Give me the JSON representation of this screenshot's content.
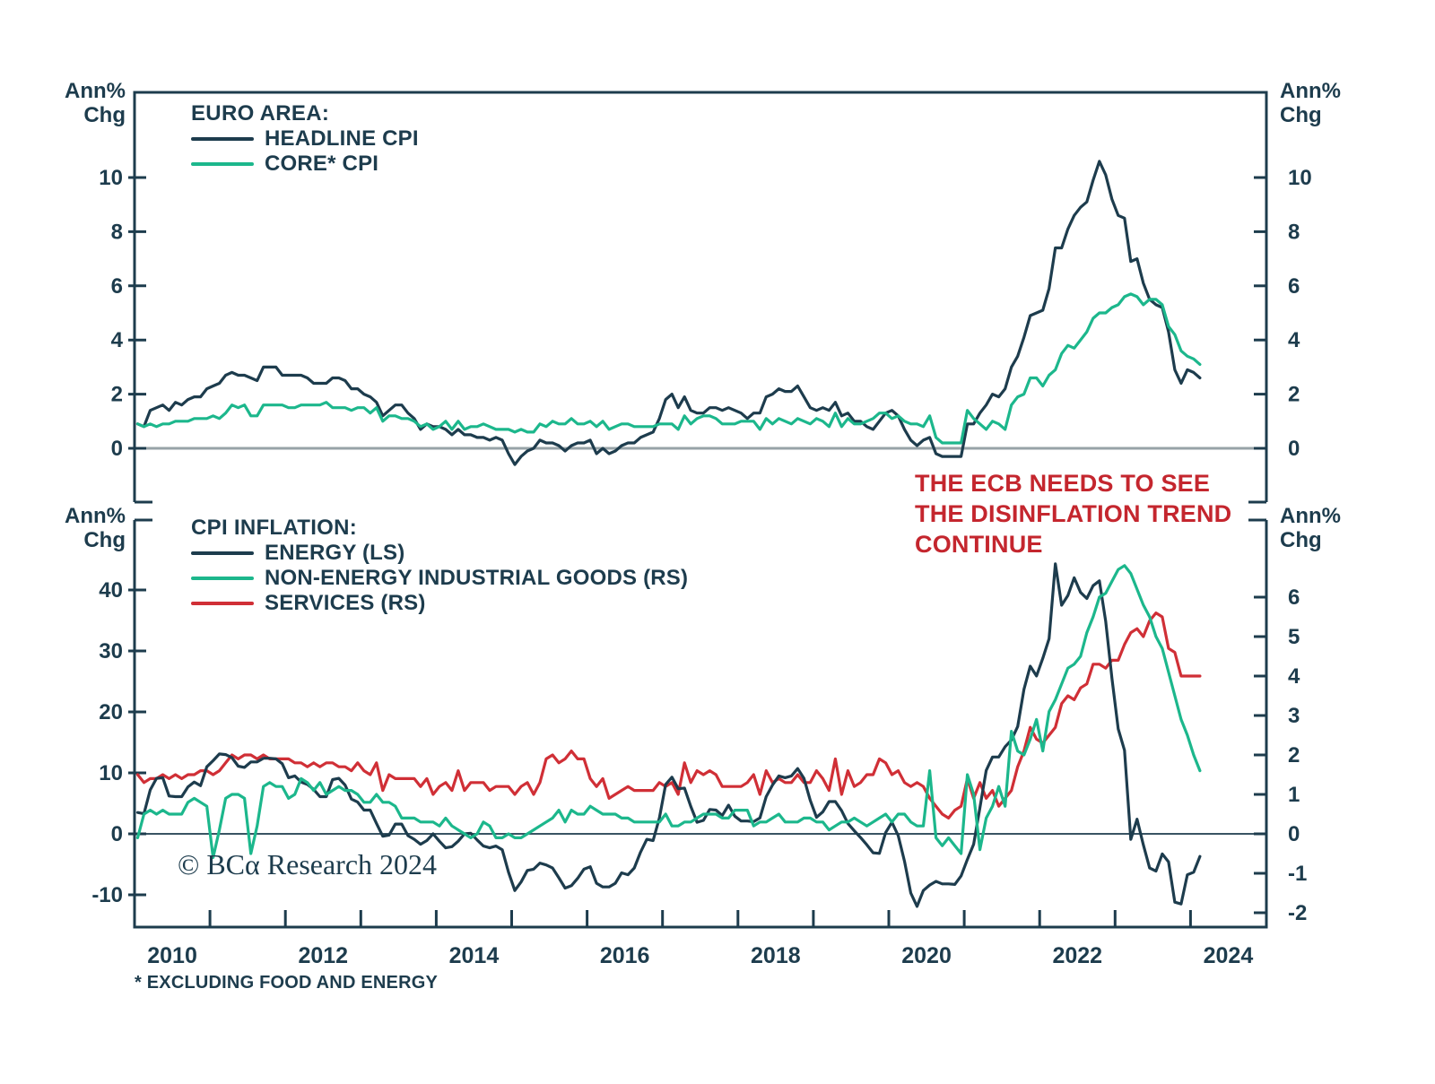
{
  "colors": {
    "navy": "#1d3c4d",
    "green": "#1cb78c",
    "red": "#d02f36",
    "annotation_red": "#c4262e",
    "zero_gray": "#97a3a7"
  },
  "axis_headers": {
    "line1": "Ann%",
    "line2": "Chg"
  },
  "annotation": {
    "line1": "THE ECB NEEDS TO SEE",
    "line2": "THE DISINFLATION TREND",
    "line3": "CONTINUE"
  },
  "footnote": "* EXCLUDING FOOD AND ENERGY",
  "copyright": "© BCα Research 2024",
  "chart_data": [
    {
      "type": "line",
      "title": "EURO AREA:",
      "x_start_year": 2010,
      "points_per_year": 12,
      "x_range": [
        2010,
        2025
      ],
      "ylim": [
        -2,
        13
      ],
      "ylabel_left": "Ann% Chg",
      "ylabel_right": "Ann% Chg",
      "y_ticks_left": [
        10,
        8,
        6,
        4,
        2,
        0
      ],
      "y_ticks_right": [
        10,
        8,
        6,
        4,
        2,
        0
      ],
      "grid": false,
      "zero_line": true,
      "series": [
        {
          "name": "HEADLINE CPI",
          "color_key": "navy",
          "axis": "left",
          "values": [
            0.9,
            0.8,
            1.4,
            1.5,
            1.6,
            1.4,
            1.7,
            1.6,
            1.8,
            1.9,
            1.9,
            2.2,
            2.3,
            2.4,
            2.7,
            2.8,
            2.7,
            2.7,
            2.6,
            2.5,
            3.0,
            3.0,
            3.0,
            2.7,
            2.7,
            2.7,
            2.7,
            2.6,
            2.4,
            2.4,
            2.4,
            2.6,
            2.6,
            2.5,
            2.2,
            2.2,
            2.0,
            1.9,
            1.7,
            1.2,
            1.4,
            1.6,
            1.6,
            1.3,
            1.1,
            0.7,
            0.9,
            0.8,
            0.8,
            0.7,
            0.5,
            0.7,
            0.5,
            0.5,
            0.4,
            0.4,
            0.3,
            0.4,
            0.3,
            -0.2,
            -0.6,
            -0.3,
            -0.1,
            0.0,
            0.3,
            0.2,
            0.2,
            0.1,
            -0.1,
            0.1,
            0.2,
            0.2,
            0.3,
            -0.2,
            0.0,
            -0.2,
            -0.1,
            0.1,
            0.2,
            0.2,
            0.4,
            0.5,
            0.6,
            1.1,
            1.8,
            2.0,
            1.5,
            1.9,
            1.4,
            1.3,
            1.3,
            1.5,
            1.5,
            1.4,
            1.5,
            1.4,
            1.3,
            1.1,
            1.3,
            1.3,
            1.9,
            2.0,
            2.2,
            2.1,
            2.1,
            2.3,
            1.9,
            1.5,
            1.4,
            1.5,
            1.4,
            1.7,
            1.2,
            1.3,
            1.0,
            1.0,
            0.8,
            0.7,
            1.0,
            1.3,
            1.4,
            1.2,
            0.7,
            0.3,
            0.1,
            0.3,
            0.4,
            -0.2,
            -0.3,
            -0.3,
            -0.3,
            -0.3,
            0.9,
            0.9,
            1.3,
            1.6,
            2.0,
            1.9,
            2.2,
            3.0,
            3.4,
            4.1,
            4.9,
            5.0,
            5.1,
            5.9,
            7.4,
            7.4,
            8.1,
            8.6,
            8.9,
            9.1,
            9.9,
            10.6,
            10.1,
            9.2,
            8.6,
            8.5,
            6.9,
            7.0,
            6.1,
            5.5,
            5.3,
            5.2,
            4.3,
            2.9,
            2.4,
            2.9,
            2.8,
            2.6
          ]
        },
        {
          "name": "CORE* CPI",
          "color_key": "green",
          "axis": "left",
          "values": [
            0.9,
            0.8,
            0.9,
            0.8,
            0.9,
            0.9,
            1.0,
            1.0,
            1.0,
            1.1,
            1.1,
            1.1,
            1.2,
            1.1,
            1.3,
            1.6,
            1.5,
            1.6,
            1.2,
            1.2,
            1.6,
            1.6,
            1.6,
            1.6,
            1.5,
            1.5,
            1.6,
            1.6,
            1.6,
            1.6,
            1.7,
            1.5,
            1.5,
            1.5,
            1.4,
            1.5,
            1.5,
            1.3,
            1.5,
            1.0,
            1.2,
            1.2,
            1.1,
            1.1,
            1.0,
            0.8,
            0.9,
            0.7,
            0.8,
            1.0,
            0.7,
            1.0,
            0.7,
            0.8,
            0.8,
            0.9,
            0.8,
            0.7,
            0.7,
            0.7,
            0.6,
            0.7,
            0.6,
            0.6,
            0.9,
            0.8,
            1.0,
            0.9,
            0.9,
            1.1,
            0.9,
            0.9,
            1.0,
            0.8,
            1.0,
            0.7,
            0.8,
            0.9,
            0.9,
            0.8,
            0.8,
            0.8,
            0.8,
            0.9,
            0.9,
            0.9,
            0.7,
            1.2,
            0.9,
            1.1,
            1.2,
            1.2,
            1.1,
            0.9,
            0.9,
            0.9,
            1.0,
            1.0,
            1.0,
            0.7,
            1.1,
            0.9,
            1.1,
            1.0,
            0.9,
            1.1,
            1.0,
            0.9,
            1.1,
            1.0,
            0.8,
            1.3,
            0.8,
            1.1,
            0.9,
            0.9,
            1.0,
            1.1,
            1.3,
            1.3,
            1.1,
            1.2,
            1.0,
            0.9,
            0.9,
            0.8,
            1.2,
            0.4,
            0.2,
            0.2,
            0.2,
            0.2,
            1.4,
            1.1,
            0.9,
            0.7,
            1.0,
            0.9,
            0.7,
            1.6,
            1.9,
            2.0,
            2.6,
            2.6,
            2.3,
            2.7,
            2.9,
            3.5,
            3.8,
            3.7,
            4.0,
            4.3,
            4.8,
            5.0,
            5.0,
            5.2,
            5.3,
            5.6,
            5.7,
            5.6,
            5.3,
            5.5,
            5.5,
            5.3,
            4.5,
            4.2,
            3.6,
            3.4,
            3.3,
            3.1
          ]
        }
      ]
    },
    {
      "type": "line",
      "title": "CPI INFLATION:",
      "x_start_year": 2010,
      "points_per_year": 12,
      "x_range": [
        2010,
        2025
      ],
      "ylim_left": [
        -15,
        52
      ],
      "ylim_right": [
        -2.4,
        8
      ],
      "ylabel_left": "Ann% Chg",
      "ylabel_right": "Ann% Chg",
      "y_ticks_left": [
        40,
        30,
        20,
        10,
        0,
        -10
      ],
      "y_ticks_right": [
        6,
        5,
        4,
        3,
        2,
        1,
        0,
        -1,
        -2
      ],
      "x_ticks": [
        2010,
        2011,
        2012,
        2013,
        2014,
        2015,
        2016,
        2017,
        2018,
        2019,
        2020,
        2021,
        2022,
        2023,
        2024
      ],
      "x_tick_labels": [
        "2010",
        "2012",
        "2014",
        "2016",
        "2018",
        "2020",
        "2022",
        "2024"
      ],
      "grid": false,
      "zero_line": true,
      "series": [
        {
          "name": "ENERGY (LS)",
          "color_key": "navy",
          "axis": "left",
          "values": [
            3.5,
            3.3,
            7.2,
            9.1,
            9.2,
            6.2,
            6.1,
            6.1,
            7.7,
            8.5,
            7.9,
            11.0,
            12.0,
            13.1,
            13.0,
            12.5,
            11.1,
            10.9,
            11.8,
            11.8,
            12.4,
            12.4,
            12.3,
            11.5,
            9.2,
            9.5,
            8.5,
            8.1,
            7.3,
            6.1,
            6.1,
            8.9,
            9.1,
            8.0,
            5.7,
            5.2,
            3.9,
            3.9,
            1.7,
            -0.4,
            -0.2,
            1.6,
            1.6,
            -0.3,
            -0.9,
            -1.7,
            -1.1,
            0.0,
            -1.2,
            -2.3,
            -2.1,
            -1.2,
            0.0,
            0.1,
            -1.0,
            -2.0,
            -2.3,
            -2.0,
            -2.6,
            -6.3,
            -9.3,
            -7.9,
            -6.0,
            -5.8,
            -4.8,
            -5.1,
            -5.6,
            -7.2,
            -8.9,
            -8.5,
            -7.3,
            -5.8,
            -5.4,
            -8.1,
            -8.7,
            -8.7,
            -8.1,
            -6.4,
            -6.7,
            -5.6,
            -3.0,
            -0.9,
            -1.1,
            2.6,
            8.1,
            9.3,
            7.4,
            7.5,
            4.5,
            1.9,
            2.2,
            4.0,
            3.9,
            3.0,
            4.7,
            2.9,
            2.1,
            2.1,
            2.0,
            2.6,
            6.1,
            8.0,
            9.5,
            9.2,
            9.5,
            10.7,
            9.1,
            5.5,
            2.7,
            3.6,
            5.3,
            5.3,
            3.8,
            1.7,
            0.5,
            -0.6,
            -1.8,
            -3.1,
            -3.2,
            0.2,
            1.9,
            -0.3,
            -4.5,
            -9.7,
            -11.9,
            -9.3,
            -8.4,
            -7.8,
            -8.2,
            -8.2,
            -8.3,
            -6.9,
            -4.2,
            -1.7,
            4.3,
            10.4,
            12.6,
            12.6,
            14.3,
            15.4,
            17.6,
            23.7,
            27.5,
            25.9,
            28.8,
            32.0,
            44.3,
            37.5,
            39.1,
            42.0,
            39.6,
            38.6,
            40.7,
            41.5,
            34.9,
            25.5,
            17.2,
            13.7,
            -0.9,
            2.4,
            -1.8,
            -5.6,
            -6.1,
            -3.3,
            -4.6,
            -11.2,
            -11.5,
            -6.7,
            -6.3,
            -3.7
          ]
        },
        {
          "name": "NON-ENERGY INDUSTRIAL GOODS (RS)",
          "color_key": "green",
          "axis": "right",
          "values": [
            -0.1,
            0.5,
            0.6,
            0.5,
            0.6,
            0.5,
            0.5,
            0.5,
            0.8,
            0.9,
            0.8,
            0.7,
            -0.6,
            0.1,
            0.9,
            1.0,
            1.0,
            0.9,
            -0.5,
            0.2,
            1.2,
            1.3,
            1.2,
            1.2,
            0.9,
            1.0,
            1.4,
            1.3,
            1.1,
            1.3,
            1.0,
            1.1,
            1.2,
            1.1,
            1.1,
            1.0,
            0.8,
            0.8,
            1.0,
            0.8,
            0.8,
            0.7,
            0.4,
            0.4,
            0.4,
            0.3,
            0.3,
            0.3,
            0.2,
            0.4,
            0.2,
            0.1,
            0.0,
            -0.1,
            0.0,
            0.3,
            0.2,
            -0.1,
            -0.1,
            0.0,
            -0.1,
            -0.1,
            0.0,
            0.1,
            0.2,
            0.3,
            0.4,
            0.6,
            0.3,
            0.6,
            0.5,
            0.5,
            0.7,
            0.6,
            0.5,
            0.5,
            0.5,
            0.4,
            0.4,
            0.3,
            0.3,
            0.3,
            0.3,
            0.3,
            0.5,
            0.2,
            0.2,
            0.3,
            0.3,
            0.4,
            0.5,
            0.5,
            0.5,
            0.4,
            0.4,
            0.6,
            0.6,
            0.6,
            0.2,
            0.3,
            0.3,
            0.4,
            0.5,
            0.3,
            0.3,
            0.3,
            0.4,
            0.4,
            0.3,
            0.3,
            0.1,
            0.2,
            0.3,
            0.3,
            0.4,
            0.3,
            0.2,
            0.3,
            0.4,
            0.5,
            0.3,
            0.5,
            0.5,
            0.3,
            0.2,
            0.2,
            1.6,
            -0.1,
            -0.3,
            -0.1,
            -0.3,
            -0.5,
            1.5,
            1.0,
            -0.4,
            0.4,
            0.7,
            1.2,
            0.7,
            2.6,
            2.1,
            2.0,
            2.4,
            2.9,
            2.1,
            3.1,
            3.4,
            3.8,
            4.2,
            4.3,
            4.5,
            5.1,
            5.5,
            6.0,
            6.1,
            6.4,
            6.7,
            6.8,
            6.6,
            6.2,
            5.8,
            5.5,
            5.0,
            4.7,
            4.1,
            3.5,
            2.9,
            2.5,
            2.0,
            1.6
          ]
        },
        {
          "name": "SERVICES (RS)",
          "color_key": "red",
          "axis": "right",
          "values": [
            1.5,
            1.3,
            1.4,
            1.4,
            1.5,
            1.4,
            1.5,
            1.4,
            1.5,
            1.5,
            1.6,
            1.6,
            1.5,
            1.6,
            1.8,
            2.0,
            1.9,
            2.0,
            2.0,
            1.9,
            2.0,
            1.9,
            1.9,
            1.9,
            1.9,
            1.8,
            1.8,
            1.7,
            1.8,
            1.7,
            1.8,
            1.8,
            1.7,
            1.7,
            1.6,
            1.8,
            1.6,
            1.5,
            1.8,
            1.1,
            1.5,
            1.4,
            1.4,
            1.4,
            1.4,
            1.2,
            1.4,
            1.0,
            1.2,
            1.3,
            1.1,
            1.6,
            1.1,
            1.3,
            1.3,
            1.3,
            1.1,
            1.2,
            1.2,
            1.2,
            1.0,
            1.2,
            1.3,
            1.0,
            1.3,
            1.9,
            2.0,
            1.8,
            1.9,
            2.1,
            1.9,
            1.9,
            1.4,
            1.2,
            1.4,
            0.9,
            1.0,
            1.1,
            1.2,
            1.1,
            1.1,
            1.1,
            1.1,
            1.3,
            1.2,
            1.3,
            1.0,
            1.8,
            1.3,
            1.6,
            1.5,
            1.6,
            1.5,
            1.2,
            1.2,
            1.2,
            1.2,
            1.3,
            1.5,
            1.0,
            1.6,
            1.3,
            1.4,
            1.3,
            1.3,
            1.5,
            1.3,
            1.3,
            1.6,
            1.4,
            1.1,
            1.9,
            1.0,
            1.6,
            1.2,
            1.3,
            1.5,
            1.5,
            1.9,
            1.8,
            1.5,
            1.6,
            1.3,
            1.2,
            1.3,
            1.2,
            0.9,
            0.7,
            0.5,
            0.4,
            0.6,
            0.7,
            1.4,
            0.9,
            1.3,
            0.9,
            1.1,
            0.7,
            0.9,
            1.1,
            1.7,
            2.1,
            2.7,
            2.4,
            2.3,
            2.5,
            2.7,
            3.3,
            3.5,
            3.4,
            3.7,
            3.8,
            4.3,
            4.3,
            4.2,
            4.4,
            4.4,
            4.8,
            5.1,
            5.2,
            5.0,
            5.4,
            5.6,
            5.5,
            4.7,
            4.6,
            4.0,
            4.0,
            4.0,
            4.0
          ]
        }
      ]
    }
  ]
}
